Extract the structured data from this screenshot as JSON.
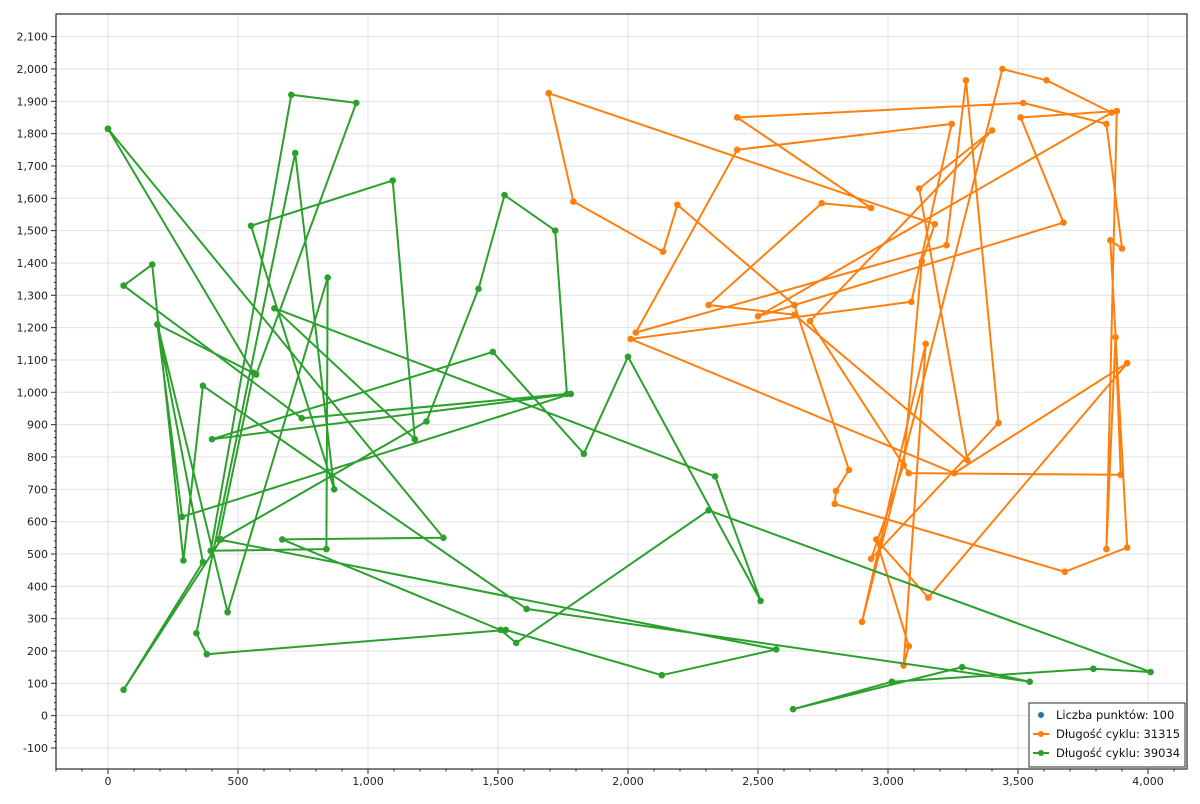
{
  "chart_data": {
    "type": "scatter",
    "title": "",
    "xlabel": "",
    "ylabel": "",
    "xlim": [
      -200,
      4150
    ],
    "ylim": [
      -165,
      2170
    ],
    "x_ticks": [
      0,
      500,
      1000,
      1500,
      2000,
      2500,
      3000,
      3500,
      4000
    ],
    "x_tick_labels": [
      "0",
      "500",
      "1,000",
      "1,500",
      "2,000",
      "2,500",
      "3,000",
      "3,500",
      "4,000"
    ],
    "y_ticks": [
      -100,
      0,
      100,
      200,
      300,
      400,
      500,
      600,
      700,
      800,
      900,
      1000,
      1100,
      1200,
      1300,
      1400,
      1500,
      1600,
      1700,
      1800,
      1900,
      2000,
      2100
    ],
    "y_tick_labels": [
      "-100",
      "0",
      "100",
      "200",
      "300",
      "400",
      "500",
      "600",
      "700",
      "800",
      "900",
      "1,000",
      "1,100",
      "1,200",
      "1,300",
      "1,400",
      "1,500",
      "1,600",
      "1,700",
      "1,800",
      "1,900",
      "2,000",
      "2,100"
    ],
    "grid": true,
    "legend_position": "bottom-right",
    "series": [
      {
        "name": "Liczba punktów: 100",
        "mode": "markers",
        "color": "#1f77b4",
        "points": []
      },
      {
        "name": "Długość cyklu: 31315",
        "mode": "lines+markers",
        "color": "#ff7f0e",
        "points": [
          [
            1695,
            1925
          ],
          [
            1790,
            1590
          ],
          [
            2135,
            1435
          ],
          [
            2190,
            1580
          ],
          [
            2640,
            1270
          ],
          [
            2850,
            760
          ],
          [
            2800,
            695
          ],
          [
            2795,
            655
          ],
          [
            3680,
            445
          ],
          [
            3920,
            520
          ],
          [
            3855,
            1470
          ],
          [
            3900,
            1445
          ],
          [
            3840,
            1830
          ],
          [
            3520,
            1895
          ],
          [
            2420,
            1850
          ],
          [
            2935,
            1570
          ],
          [
            2745,
            1585
          ],
          [
            2310,
            1270
          ],
          [
            2640,
            1240
          ],
          [
            3305,
            790
          ],
          [
            3120,
            1630
          ],
          [
            3400,
            1810
          ],
          [
            2700,
            1220
          ],
          [
            3080,
            750
          ],
          [
            3895,
            745
          ],
          [
            3875,
            1170
          ],
          [
            3840,
            515
          ],
          [
            3880,
            1870
          ],
          [
            3510,
            1850
          ],
          [
            3675,
            1525
          ],
          [
            2500,
            1235
          ],
          [
            3860,
            1865
          ],
          [
            3610,
            1965
          ],
          [
            3440,
            2000
          ],
          [
            2900,
            290
          ],
          [
            3145,
            1150
          ],
          [
            3060,
            155
          ],
          [
            3080,
            215
          ],
          [
            2955,
            545
          ],
          [
            3155,
            365
          ],
          [
            3920,
            1090
          ],
          [
            3255,
            750
          ],
          [
            2010,
            1165
          ],
          [
            3090,
            1280
          ],
          [
            3245,
            1830
          ],
          [
            2420,
            1750
          ],
          [
            2030,
            1185
          ],
          [
            3225,
            1455
          ],
          [
            3300,
            1965
          ],
          [
            3425,
            905
          ],
          [
            2935,
            485
          ],
          [
            3060,
            775
          ],
          [
            3130,
            1405
          ],
          [
            3180,
            1520
          ],
          [
            1695,
            1925
          ]
        ]
      },
      {
        "name": "Długość cyklu: 39034",
        "mode": "lines+markers",
        "color": "#2ca02c",
        "points": [
          [
            0,
            1815
          ],
          [
            560,
            1060
          ],
          [
            425,
            545
          ],
          [
            2570,
            205
          ],
          [
            2130,
            125
          ],
          [
            1530,
            265
          ],
          [
            380,
            190
          ],
          [
            340,
            255
          ],
          [
            720,
            1740
          ],
          [
            870,
            700
          ],
          [
            550,
            1515
          ],
          [
            1095,
            1655
          ],
          [
            1180,
            855
          ],
          [
            640,
            1260
          ],
          [
            2335,
            740
          ],
          [
            2510,
            355
          ],
          [
            2000,
            1110
          ],
          [
            1830,
            810
          ],
          [
            1480,
            1125
          ],
          [
            400,
            855
          ],
          [
            1780,
            995
          ],
          [
            285,
            615
          ],
          [
            190,
            1210
          ],
          [
            460,
            320
          ],
          [
            845,
            1355
          ],
          [
            840,
            515
          ],
          [
            395,
            510
          ],
          [
            705,
            1920
          ],
          [
            955,
            1895
          ],
          [
            570,
            1055
          ],
          [
            190,
            1210
          ],
          [
            365,
            475
          ],
          [
            60,
            80
          ],
          [
            435,
            545
          ],
          [
            1225,
            910
          ],
          [
            1425,
            1320
          ],
          [
            1525,
            1610
          ],
          [
            1720,
            1500
          ],
          [
            1765,
            995
          ],
          [
            745,
            920
          ],
          [
            60,
            1330
          ],
          [
            170,
            1395
          ],
          [
            290,
            480
          ],
          [
            365,
            1020
          ],
          [
            1610,
            330
          ],
          [
            3545,
            105
          ],
          [
            3285,
            150
          ],
          [
            2635,
            20
          ],
          [
            3015,
            105
          ],
          [
            3790,
            145
          ],
          [
            4010,
            135
          ],
          [
            2310,
            635
          ],
          [
            1570,
            225
          ],
          [
            1510,
            265
          ],
          [
            670,
            545
          ],
          [
            1290,
            550
          ],
          [
            0,
            1815
          ]
        ]
      }
    ]
  }
}
